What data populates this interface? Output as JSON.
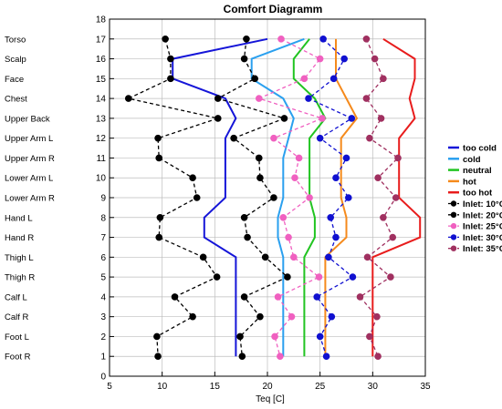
{
  "chart_data": {
    "type": "line",
    "title": "Comfort Diagramm",
    "xlabel": "Teq [C]",
    "xlim": [
      5,
      35
    ],
    "ylim": [
      0,
      18
    ],
    "xticks": [
      5,
      10,
      15,
      20,
      25,
      30,
      35
    ],
    "yticks": [
      0,
      1,
      2,
      3,
      4,
      5,
      6,
      7,
      8,
      9,
      10,
      11,
      12,
      13,
      14,
      15,
      16,
      17,
      18
    ],
    "grid": true,
    "legend_position": "right",
    "body_parts": [
      {
        "label": "Torso",
        "y": 17
      },
      {
        "label": "Scalp",
        "y": 16
      },
      {
        "label": "Face",
        "y": 15
      },
      {
        "label": "Chest",
        "y": 14
      },
      {
        "label": "Upper Back",
        "y": 13
      },
      {
        "label": "Upper Arm L",
        "y": 12
      },
      {
        "label": "Upper Arm R",
        "y": 11
      },
      {
        "label": "Lower Arm L",
        "y": 10
      },
      {
        "label": "Lower Arm R",
        "y": 9
      },
      {
        "label": "Hand L",
        "y": 8
      },
      {
        "label": "Hand R",
        "y": 7
      },
      {
        "label": "Thigh L",
        "y": 6
      },
      {
        "label": "Thigh R",
        "y": 5
      },
      {
        "label": "Calf L",
        "y": 4
      },
      {
        "label": "Calf R",
        "y": 3
      },
      {
        "label": "Foot L",
        "y": 2
      },
      {
        "label": "Foot R",
        "y": 1
      }
    ],
    "boundary_series": [
      {
        "name": "too cold",
        "color": "#1515d8",
        "y": [
          17,
          16,
          15,
          14,
          13,
          12,
          11,
          10,
          9,
          8,
          7,
          6,
          5,
          4,
          3,
          2,
          1
        ],
        "x": [
          20.0,
          11.0,
          11.0,
          16.0,
          17.0,
          16.0,
          16.0,
          16.0,
          16.0,
          14.0,
          14.0,
          17.0,
          17.0,
          17.0,
          17.0,
          17.0,
          17.0
        ]
      },
      {
        "name": "cold",
        "color": "#2aa0ef",
        "y": [
          17,
          16,
          15,
          14,
          13,
          12,
          11,
          10,
          9,
          8,
          7,
          6,
          5,
          4,
          3,
          2,
          1
        ],
        "x": [
          23.5,
          18.5,
          18.5,
          21.5,
          22.5,
          22.0,
          21.5,
          21.5,
          21.5,
          21.0,
          21.0,
          21.5,
          21.5,
          21.5,
          21.5,
          21.5,
          21.5
        ]
      },
      {
        "name": "neutral",
        "color": "#21c421",
        "y": [
          17,
          16,
          15,
          14,
          13,
          12,
          11,
          10,
          9,
          8,
          7,
          6,
          5,
          4,
          3,
          2,
          1
        ],
        "x": [
          24.0,
          22.5,
          22.5,
          24.5,
          25.5,
          24.0,
          24.0,
          24.0,
          24.0,
          24.5,
          24.5,
          23.5,
          23.5,
          23.5,
          23.5,
          23.5,
          23.5
        ]
      },
      {
        "name": "hot",
        "color": "#f58a1c",
        "y": [
          17,
          16,
          15,
          14,
          13,
          12,
          11,
          10,
          9,
          8,
          7,
          6,
          5,
          4,
          3,
          2,
          1
        ],
        "x": [
          26.5,
          26.5,
          26.5,
          27.5,
          28.5,
          27.0,
          27.0,
          27.0,
          27.0,
          27.5,
          27.5,
          25.5,
          25.5,
          25.5,
          25.5,
          25.5,
          25.5
        ]
      },
      {
        "name": "too hot",
        "color": "#e81c1c",
        "y": [
          17,
          16,
          15,
          14,
          13,
          12,
          11,
          10,
          9,
          8,
          7,
          6,
          5,
          4,
          3,
          2,
          1
        ],
        "x": [
          31.0,
          34.0,
          34.0,
          33.5,
          34.0,
          32.5,
          32.5,
          32.5,
          32.5,
          34.5,
          34.5,
          30.0,
          30.0,
          30.0,
          30.0,
          30.0,
          30.0
        ]
      }
    ],
    "inlet_series": [
      {
        "name": "Inlet: 10°C",
        "color": "#000000",
        "y": [
          17,
          16,
          15,
          14,
          13,
          12,
          11,
          10,
          9,
          8,
          7,
          6,
          5,
          4,
          3,
          2,
          1
        ],
        "x": [
          10.3,
          10.8,
          10.8,
          6.8,
          15.3,
          9.6,
          9.7,
          12.9,
          13.3,
          9.8,
          9.7,
          13.9,
          15.2,
          11.2,
          12.9,
          9.5,
          9.6
        ]
      },
      {
        "name": "Inlet: 20°C",
        "color": "#000000",
        "y": [
          17,
          16,
          15,
          14,
          13,
          12,
          11,
          10,
          9,
          8,
          7,
          6,
          5,
          4,
          3,
          2,
          1
        ],
        "x": [
          18.0,
          17.8,
          18.8,
          15.3,
          21.6,
          16.8,
          19.2,
          19.3,
          20.6,
          17.8,
          18.1,
          19.8,
          21.9,
          17.8,
          19.3,
          17.4,
          17.6
        ]
      },
      {
        "name": "Inlet: 25°C",
        "color": "#f060c0",
        "y": [
          17,
          16,
          15,
          14,
          13,
          12,
          11,
          10,
          9,
          8,
          7,
          6,
          5,
          4,
          3,
          2,
          1
        ],
        "x": [
          21.3,
          25.0,
          23.5,
          19.2,
          25.2,
          20.6,
          23.0,
          22.6,
          24.0,
          21.5,
          22.0,
          22.5,
          24.9,
          21.0,
          22.3,
          20.7,
          21.2
        ]
      },
      {
        "name": "Inlet: 30°C",
        "color": "#1010d0",
        "y": [
          17,
          16,
          15,
          14,
          13,
          12,
          11,
          10,
          9,
          8,
          7,
          6,
          5,
          4,
          3,
          2,
          1
        ],
        "x": [
          25.3,
          27.3,
          26.3,
          23.9,
          28.0,
          25.0,
          27.5,
          26.5,
          27.7,
          26.0,
          26.5,
          25.8,
          28.1,
          24.7,
          26.1,
          25.0,
          25.6
        ]
      },
      {
        "name": "Inlet: 35°C",
        "color": "#a03060",
        "y": [
          17,
          16,
          15,
          14,
          13,
          12,
          11,
          10,
          9,
          8,
          7,
          6,
          5,
          4,
          3,
          2,
          1
        ],
        "x": [
          29.4,
          30.2,
          31.0,
          29.4,
          30.8,
          29.7,
          32.4,
          30.5,
          32.2,
          31.0,
          31.9,
          29.5,
          31.7,
          28.8,
          30.4,
          29.7,
          30.5
        ]
      }
    ]
  }
}
